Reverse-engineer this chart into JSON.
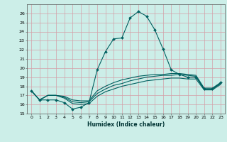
{
  "xlabel": "Humidex (Indice chaleur)",
  "xlim": [
    -0.5,
    23.5
  ],
  "ylim": [
    15,
    27
  ],
  "yticks": [
    15,
    16,
    17,
    18,
    19,
    20,
    21,
    22,
    23,
    24,
    25,
    26
  ],
  "xticks": [
    0,
    1,
    2,
    3,
    4,
    5,
    6,
    7,
    8,
    9,
    10,
    11,
    12,
    13,
    14,
    15,
    16,
    17,
    18,
    19,
    20,
    21,
    22,
    23
  ],
  "bg_color": "#cceee8",
  "grid_color": "#d4a0a8",
  "line_color": "#006060",
  "lines": [
    {
      "x": [
        0,
        1,
        2,
        3,
        4,
        5,
        6,
        7,
        8,
        9,
        10,
        11,
        12,
        13,
        14,
        15,
        16,
        17,
        18,
        19,
        20,
        21,
        22,
        23
      ],
      "y": [
        17.5,
        16.5,
        16.5,
        16.5,
        16.2,
        15.5,
        15.7,
        16.2,
        19.8,
        21.8,
        23.2,
        23.3,
        25.5,
        26.2,
        25.7,
        24.2,
        22.1,
        19.8,
        19.3,
        19.0,
        19.0,
        17.7,
        17.7,
        18.4
      ],
      "marker": true
    },
    {
      "x": [
        0,
        1,
        2,
        3,
        4,
        5,
        6,
        7,
        8,
        9,
        10,
        11,
        12,
        13,
        14,
        15,
        16,
        17,
        18,
        19,
        20,
        21,
        22,
        23
      ],
      "y": [
        17.5,
        16.5,
        17.0,
        17.0,
        16.9,
        16.5,
        16.4,
        16.4,
        17.5,
        18.0,
        18.4,
        18.7,
        18.9,
        19.1,
        19.2,
        19.3,
        19.3,
        19.4,
        19.4,
        19.3,
        19.2,
        17.8,
        17.8,
        18.4
      ],
      "marker": false
    },
    {
      "x": [
        0,
        1,
        2,
        3,
        4,
        5,
        6,
        7,
        8,
        9,
        10,
        11,
        12,
        13,
        14,
        15,
        16,
        17,
        18,
        19,
        20,
        21,
        22,
        23
      ],
      "y": [
        17.5,
        16.5,
        17.0,
        17.0,
        16.8,
        16.3,
        16.2,
        16.3,
        17.2,
        17.7,
        18.1,
        18.3,
        18.6,
        18.8,
        19.0,
        19.1,
        19.2,
        19.2,
        19.3,
        19.2,
        19.1,
        17.7,
        17.7,
        18.3
      ],
      "marker": false
    },
    {
      "x": [
        0,
        1,
        2,
        3,
        4,
        5,
        6,
        7,
        8,
        9,
        10,
        11,
        12,
        13,
        14,
        15,
        16,
        17,
        18,
        19,
        20,
        21,
        22,
        23
      ],
      "y": [
        17.5,
        16.5,
        17.0,
        17.0,
        16.7,
        16.1,
        16.0,
        16.1,
        16.9,
        17.4,
        17.7,
        18.0,
        18.2,
        18.4,
        18.6,
        18.7,
        18.8,
        18.9,
        18.9,
        18.8,
        18.8,
        17.6,
        17.6,
        18.2
      ],
      "marker": false
    }
  ]
}
